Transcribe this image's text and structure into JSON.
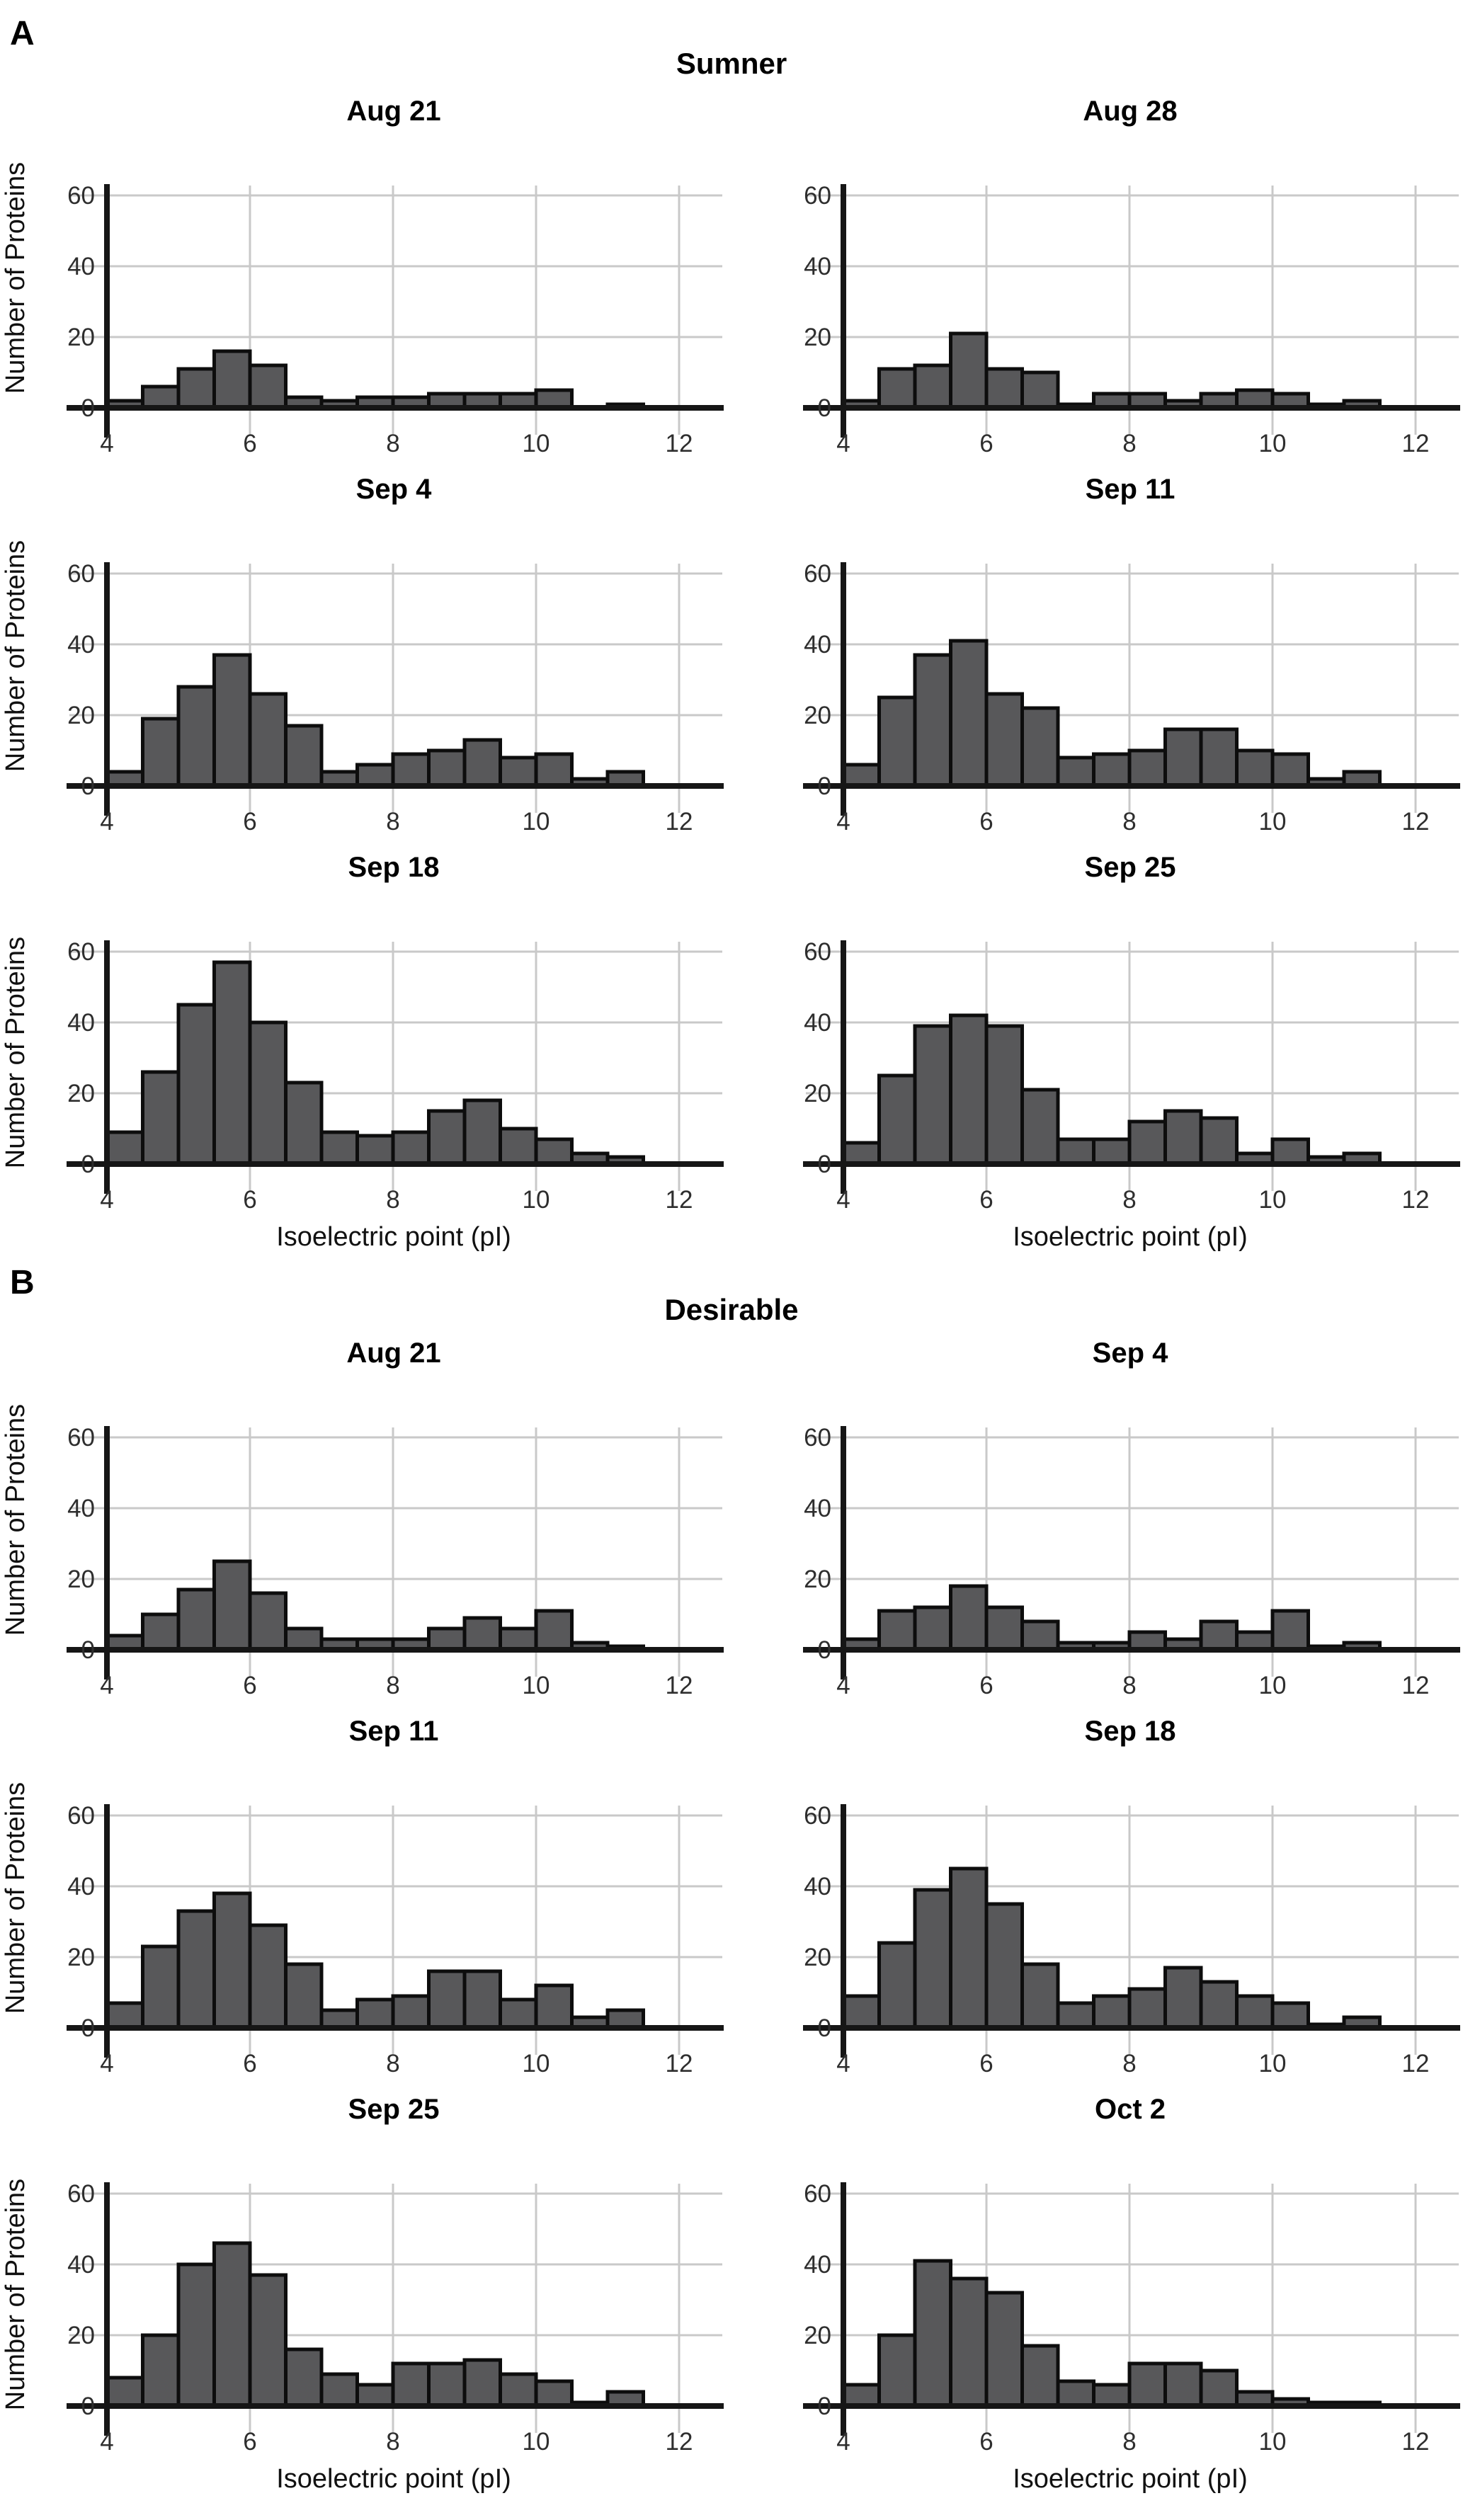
{
  "chart_data": {
    "type": "bar",
    "subtype": "histogram",
    "xlabel": "Isoelectric point (pI)",
    "ylabel": "Number of Proteins",
    "bin_edges": [
      4.0,
      4.5,
      5.0,
      5.5,
      6.0,
      6.5,
      7.0,
      7.5,
      8.0,
      8.5,
      9.0,
      9.5,
      10.0,
      10.5,
      11.0,
      11.5,
      12.0
    ],
    "xticks": [
      4,
      6,
      8,
      10,
      12
    ],
    "yticks": [
      0,
      20,
      40,
      60
    ],
    "xlim": [
      4,
      12.5
    ],
    "ylim": [
      0,
      63
    ],
    "grid": true,
    "legend": "none",
    "bar_color": "#58585a",
    "bar_border_color": "#0d0d0d",
    "grid_color": "#c9c9c9",
    "axis_color": "#161616",
    "tick_text_color": "#2e2e2e",
    "panels": [
      {
        "panel_label": "A",
        "panel_title": "Sumner",
        "subplots": [
          {
            "title": "Aug 21",
            "values": [
              2,
              6,
              11,
              16,
              12,
              3,
              2,
              3,
              3,
              4,
              4,
              4,
              5,
              0,
              1,
              0
            ]
          },
          {
            "title": "Aug 28",
            "values": [
              2,
              11,
              12,
              21,
              11,
              10,
              1,
              4,
              4,
              2,
              4,
              5,
              4,
              1,
              2,
              0
            ]
          },
          {
            "title": "Sep 4",
            "values": [
              4,
              19,
              28,
              37,
              26,
              17,
              4,
              6,
              9,
              10,
              13,
              8,
              9,
              2,
              4,
              0
            ]
          },
          {
            "title": "Sep 11",
            "values": [
              6,
              25,
              37,
              41,
              26,
              22,
              8,
              9,
              10,
              16,
              16,
              10,
              9,
              2,
              4,
              0
            ]
          },
          {
            "title": "Sep 18",
            "values": [
              9,
              26,
              45,
              57,
              40,
              23,
              9,
              8,
              9,
              15,
              18,
              10,
              7,
              3,
              2,
              0
            ]
          },
          {
            "title": "Sep 25",
            "values": [
              6,
              25,
              39,
              42,
              39,
              21,
              7,
              7,
              12,
              15,
              13,
              3,
              7,
              2,
              3,
              0
            ]
          }
        ]
      },
      {
        "panel_label": "B",
        "panel_title": "Desirable",
        "subplots": [
          {
            "title": "Aug 21",
            "values": [
              4,
              10,
              17,
              25,
              16,
              6,
              3,
              3,
              3,
              6,
              9,
              6,
              11,
              2,
              1,
              0
            ]
          },
          {
            "title": "Sep 4",
            "values": [
              3,
              11,
              12,
              18,
              12,
              8,
              2,
              2,
              5,
              3,
              8,
              5,
              11,
              1,
              2,
              0
            ]
          },
          {
            "title": "Sep 11",
            "values": [
              7,
              23,
              33,
              38,
              29,
              18,
              5,
              8,
              9,
              16,
              16,
              8,
              12,
              3,
              5,
              0
            ]
          },
          {
            "title": "Sep 18",
            "values": [
              9,
              24,
              39,
              45,
              35,
              18,
              7,
              9,
              11,
              17,
              13,
              9,
              7,
              1,
              3,
              0
            ]
          },
          {
            "title": "Sep 25",
            "values": [
              8,
              20,
              40,
              46,
              37,
              16,
              9,
              6,
              12,
              12,
              13,
              9,
              7,
              1,
              4,
              0
            ]
          },
          {
            "title": "Oct 2",
            "values": [
              6,
              20,
              41,
              36,
              32,
              17,
              7,
              6,
              12,
              12,
              10,
              4,
              2,
              1,
              1,
              0
            ]
          }
        ]
      }
    ]
  }
}
